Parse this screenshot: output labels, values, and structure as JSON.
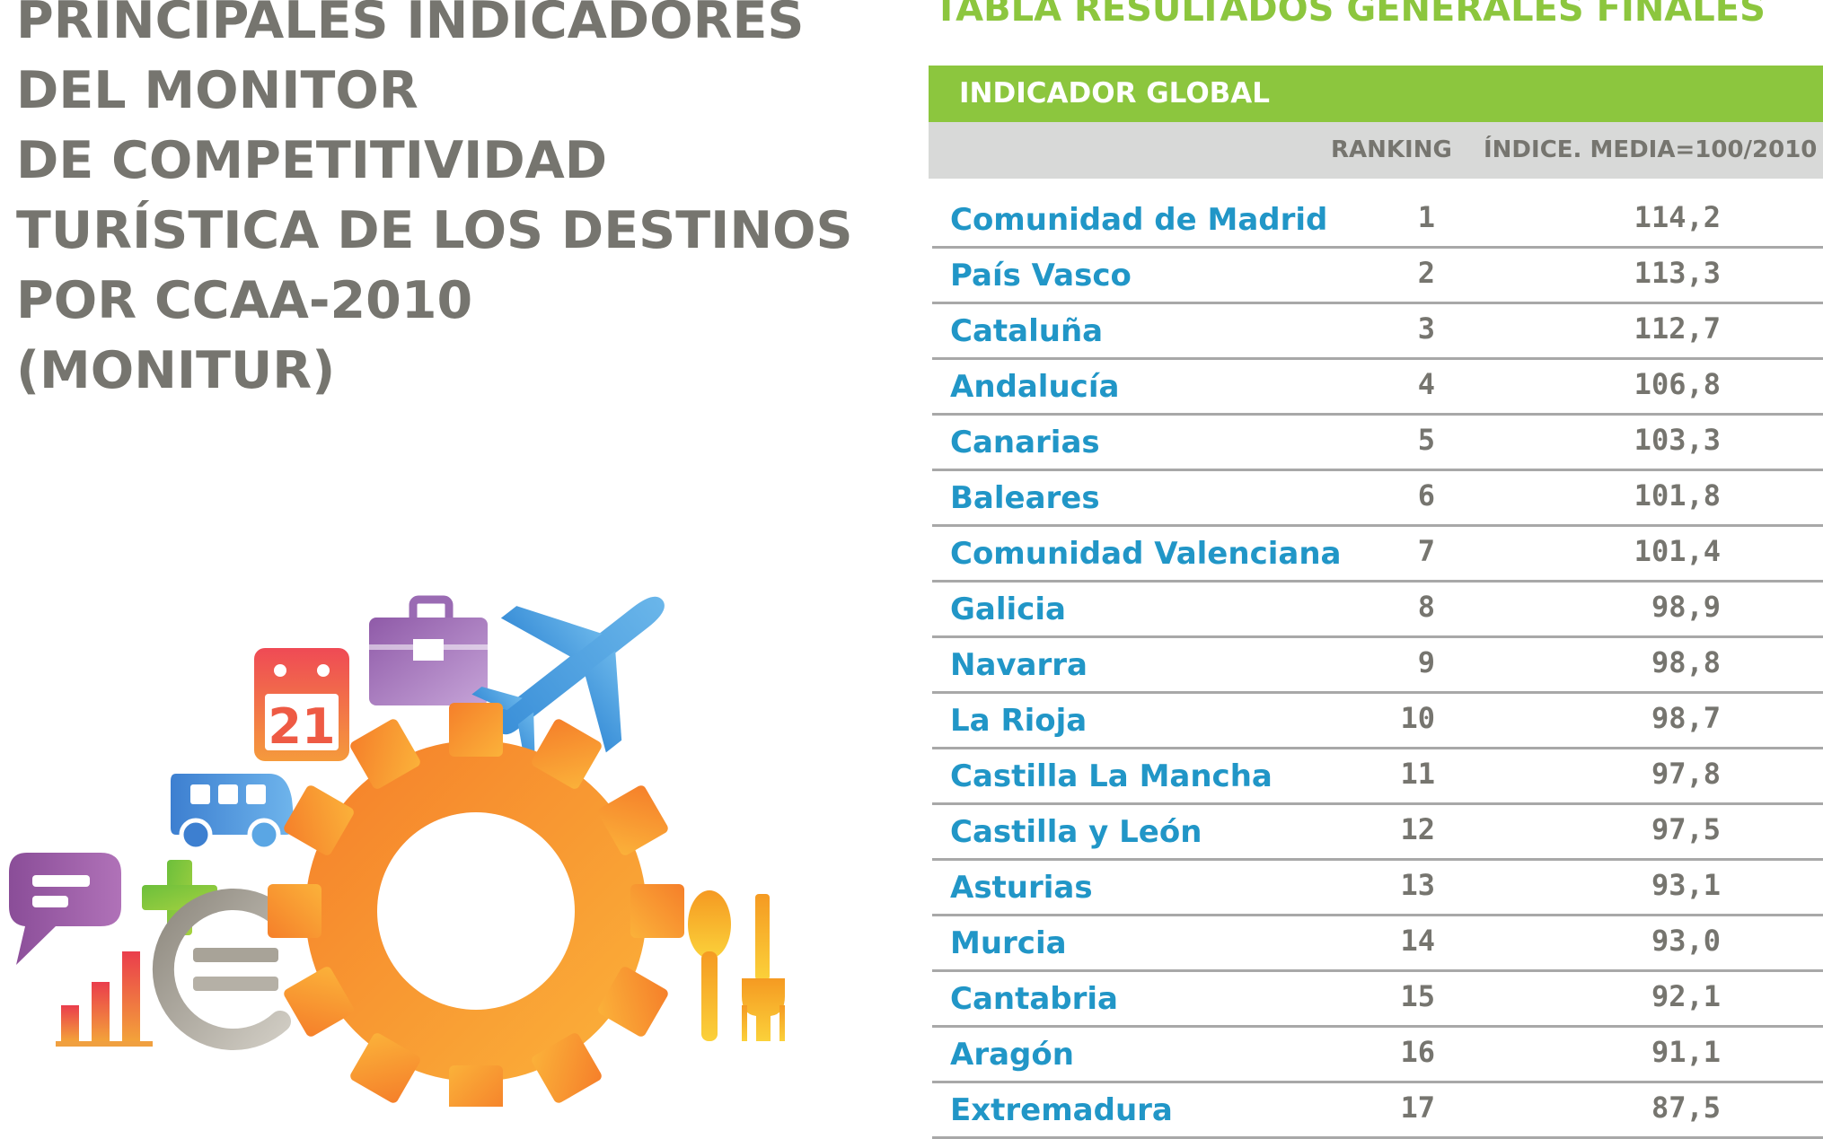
{
  "title_lines": [
    "PRINCIPALES INDICADORES",
    "DEL MONITOR",
    "DE COMPETITIVIDAD",
    "TURÍSTICA DE LOS DESTINOS",
    "POR CCAA-2010",
    "(MONITUR)"
  ],
  "table": {
    "title": "TABLA RESULTADOS GENERALES FINALES",
    "section": "INDICADOR GLOBAL",
    "col_rank": "RANKING",
    "col_index": "ÍNDICE. MEDIA=100/2010",
    "rows": [
      {
        "name": "Comunidad de Madrid",
        "rank": "1",
        "index": "114,2"
      },
      {
        "name": "País Vasco",
        "rank": "2",
        "index": "113,3"
      },
      {
        "name": "Cataluña",
        "rank": "3",
        "index": "112,7"
      },
      {
        "name": "Andalucía",
        "rank": "4",
        "index": "106,8"
      },
      {
        "name": "Canarias",
        "rank": "5",
        "index": "103,3"
      },
      {
        "name": "Baleares",
        "rank": "6",
        "index": "101,8"
      },
      {
        "name": "Comunidad Valenciana",
        "rank": "7",
        "index": "101,4"
      },
      {
        "name": "Galicia",
        "rank": "8",
        "index": "98,9"
      },
      {
        "name": "Navarra",
        "rank": "9",
        "index": "98,8"
      },
      {
        "name": "La Rioja",
        "rank": "10",
        "index": "98,7"
      },
      {
        "name": "Castilla La Mancha",
        "rank": "11",
        "index": "97,8"
      },
      {
        "name": "Castilla y León",
        "rank": "12",
        "index": "97,5"
      },
      {
        "name": "Asturias",
        "rank": "13",
        "index": "93,1"
      },
      {
        "name": "Murcia",
        "rank": "14",
        "index": "93,0"
      },
      {
        "name": "Cantabria",
        "rank": "15",
        "index": "92,1"
      },
      {
        "name": "Aragón",
        "rank": "16",
        "index": "91,1"
      },
      {
        "name": "Extremadura",
        "rank": "17",
        "index": "87,5"
      }
    ]
  },
  "illustration": {
    "calendar_day": "21",
    "icons": [
      "calendar-icon",
      "briefcase-icon",
      "airplane-icon",
      "bus-icon",
      "chat-bubble-icon",
      "plus-icon",
      "euro-icon",
      "bar-chart-icon",
      "gear-icon",
      "spoon-icon",
      "fork-icon"
    ]
  },
  "colors": {
    "title": "#76756f",
    "accent_green": "#8cc63e",
    "header_gray": "#d8d9d8",
    "region_blue": "#2196c7",
    "rule_gray": "#a8a8a8"
  }
}
